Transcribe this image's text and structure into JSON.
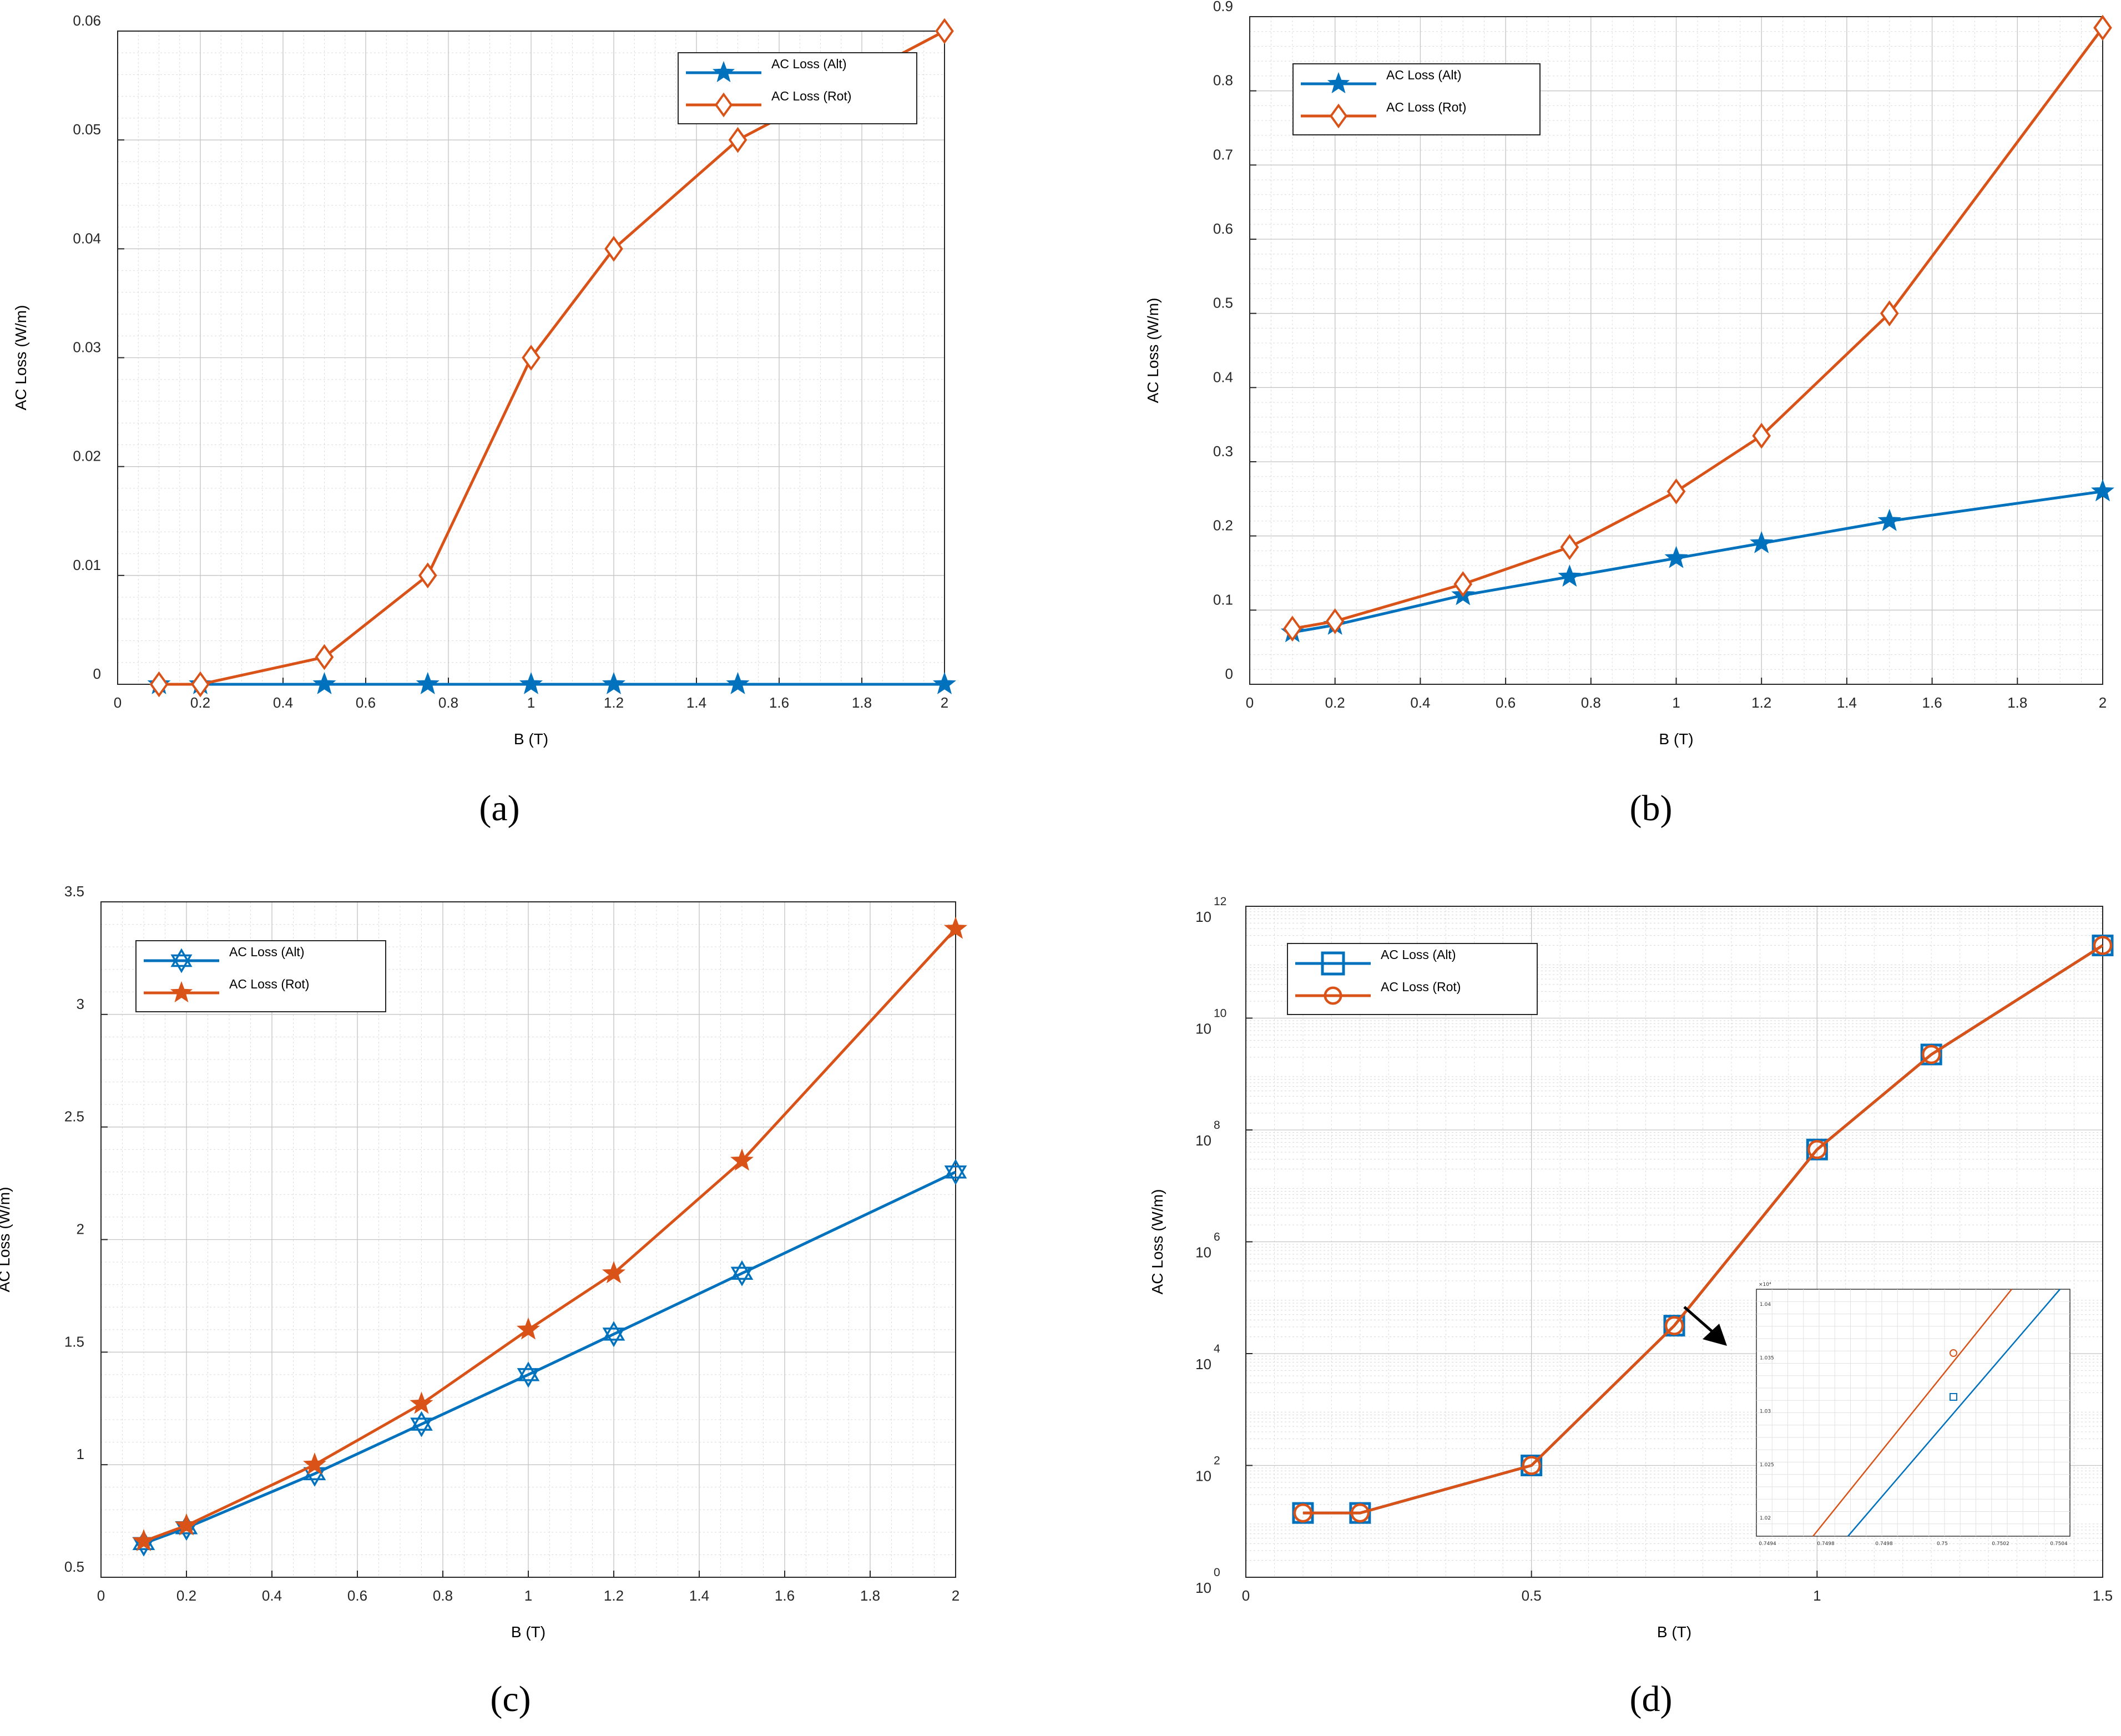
{
  "colors": {
    "alt": "#0072BD",
    "rot": "#D95319",
    "grid": "#cfcfcf",
    "axis": "#262626"
  },
  "chart_data": [
    {
      "id": "a",
      "panel_label": "(a)",
      "type": "line",
      "xlabel": "B (T)",
      "ylabel": "AC Loss (W/m)",
      "xlim": [
        0,
        2
      ],
      "ylim": [
        0,
        0.06
      ],
      "yscale": "linear",
      "xticks": [
        0,
        0.2,
        0.4,
        0.6,
        0.8,
        1,
        1.2,
        1.4,
        1.6,
        1.8,
        2
      ],
      "xticklabels": [
        "0",
        "0.2",
        "0.4",
        "0.6",
        "0.8",
        "1",
        "1.2",
        "1.4",
        "1.6",
        "1.8",
        "2"
      ],
      "yticks": [
        0,
        0.01,
        0.02,
        0.03,
        0.04,
        0.05,
        0.06
      ],
      "yticklabels": [
        "0",
        "0.01",
        "0.02",
        "0.03",
        "0.04",
        "0.05",
        "0.06"
      ],
      "legend_position": "top-right",
      "series": [
        {
          "name": "AC Loss (Alt)",
          "marker": "star5",
          "color_key": "alt",
          "x": [
            0.1,
            0.2,
            0.5,
            0.75,
            1,
            1.2,
            1.5,
            2
          ],
          "y": [
            0,
            0,
            0,
            0,
            0,
            0,
            0,
            0
          ]
        },
        {
          "name": "AC Loss (Rot)",
          "marker": "diamond",
          "color_key": "rot",
          "x": [
            0.1,
            0.2,
            0.5,
            0.75,
            1,
            1.2,
            1.5,
            2
          ],
          "y": [
            0,
            0,
            0.0025,
            0.01,
            0.03,
            0.04,
            0.05,
            0.06
          ]
        }
      ]
    },
    {
      "id": "b",
      "panel_label": "(b)",
      "type": "line",
      "xlabel": "B (T)",
      "ylabel": "AC Loss (W/m)",
      "xlim": [
        0,
        2
      ],
      "ylim": [
        0,
        0.9
      ],
      "yscale": "linear",
      "xticks": [
        0,
        0.2,
        0.4,
        0.6,
        0.8,
        1,
        1.2,
        1.4,
        1.6,
        1.8,
        2
      ],
      "xticklabels": [
        "0",
        "0.2",
        "0.4",
        "0.6",
        "0.8",
        "1",
        "1.2",
        "1.4",
        "1.6",
        "1.8",
        "2"
      ],
      "yticks": [
        0,
        0.1,
        0.2,
        0.3,
        0.4,
        0.5,
        0.6,
        0.7,
        0.8,
        0.9
      ],
      "yticklabels": [
        "0",
        "0.1",
        "0.2",
        "0.3",
        "0.4",
        "0.5",
        "0.6",
        "0.7",
        "0.8",
        "0.9"
      ],
      "legend_position": "top-left",
      "series": [
        {
          "name": "AC Loss (Alt)",
          "marker": "star5",
          "color_key": "alt",
          "x": [
            0.1,
            0.2,
            0.5,
            0.75,
            1,
            1.2,
            1.5,
            2
          ],
          "y": [
            0.07,
            0.08,
            0.12,
            0.145,
            0.17,
            0.19,
            0.22,
            0.26
          ]
        },
        {
          "name": "AC Loss (Rot)",
          "marker": "diamond",
          "color_key": "rot",
          "x": [
            0.1,
            0.2,
            0.5,
            0.75,
            1,
            1.2,
            1.5,
            2
          ],
          "y": [
            0.075,
            0.085,
            0.135,
            0.185,
            0.26,
            0.335,
            0.5,
            0.885
          ]
        }
      ]
    },
    {
      "id": "c",
      "panel_label": "(c)",
      "type": "line",
      "xlabel": "B (T)",
      "ylabel": "AC Loss (W/m)",
      "xlim": [
        0,
        2
      ],
      "ylim": [
        0.5,
        3.5
      ],
      "yscale": "linear",
      "xticks": [
        0,
        0.2,
        0.4,
        0.6,
        0.8,
        1,
        1.2,
        1.4,
        1.6,
        1.8,
        2
      ],
      "xticklabels": [
        "0",
        "0.2",
        "0.4",
        "0.6",
        "0.8",
        "1",
        "1.2",
        "1.4",
        "1.6",
        "1.8",
        "2"
      ],
      "yticks": [
        0.5,
        1,
        1.5,
        2,
        2.5,
        3,
        3.5
      ],
      "yticklabels": [
        "0.5",
        "1",
        "1.5",
        "2",
        "2.5",
        "3",
        "3.5"
      ],
      "legend_position": "top-left",
      "series": [
        {
          "name": "AC Loss (Alt)",
          "marker": "hexagram",
          "color_key": "alt",
          "x": [
            0.1,
            0.2,
            0.5,
            0.75,
            1,
            1.2,
            1.5,
            2
          ],
          "y": [
            0.65,
            0.72,
            0.96,
            1.18,
            1.4,
            1.58,
            1.85,
            2.3
          ]
        },
        {
          "name": "AC Loss (Rot)",
          "marker": "star5",
          "color_key": "rot",
          "x": [
            0.1,
            0.2,
            0.5,
            0.75,
            1,
            1.2,
            1.5,
            2
          ],
          "y": [
            0.66,
            0.73,
            1.0,
            1.27,
            1.6,
            1.85,
            2.35,
            3.38
          ]
        }
      ]
    },
    {
      "id": "d",
      "panel_label": "(d)",
      "type": "line",
      "xlabel": "B (T)",
      "ylabel": "AC Loss (W/m)",
      "xlim": [
        0,
        1.5
      ],
      "ylim": [
        1,
        1000000000000.0
      ],
      "yscale": "log",
      "xticks": [
        0,
        0.5,
        1,
        1.5
      ],
      "xticklabels": [
        "0",
        "0.5",
        "1",
        "1.5"
      ],
      "yticks_exp": [
        0,
        2,
        4,
        6,
        8,
        10,
        12
      ],
      "ytick_base": "10",
      "yticklabels_exp": [
        "0",
        "2",
        "4",
        "6",
        "8",
        "10",
        "12"
      ],
      "legend_position": "top-left",
      "series": [
        {
          "name": "AC Loss (Alt)",
          "marker": "square",
          "color_key": "alt",
          "x": [
            0.1,
            0.2,
            0.5,
            0.75,
            1,
            1.2,
            1.5
          ],
          "y_exp": [
            1.15,
            1.15,
            2.0,
            4.5,
            7.65,
            9.35,
            11.3
          ]
        },
        {
          "name": "AC Loss (Rot)",
          "marker": "circle",
          "color_key": "rot",
          "x": [
            0.1,
            0.2,
            0.5,
            0.75,
            1,
            1.2,
            1.5
          ],
          "y_exp": [
            1.15,
            1.15,
            2.0,
            4.5,
            7.65,
            9.35,
            11.3
          ]
        }
      ],
      "inset": {
        "exponent_label": "×10⁴",
        "xticklabels": [
          "0.7494",
          "0.7498",
          "0.7498",
          "0.75",
          "0.7502",
          "0.7504"
        ],
        "yticklabels": [
          "1.04",
          "1.035",
          "1.03",
          "1.025",
          "1.02"
        ]
      }
    }
  ]
}
